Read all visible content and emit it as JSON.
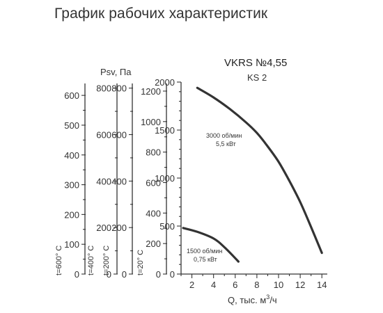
{
  "title": "График рабочих характеристик",
  "chart_data": {
    "type": "line",
    "model": "VKRS №4,55",
    "model_sub": "KS 2",
    "xlabel_main": "Q, тыс. м",
    "xlabel_exp": "3",
    "xlabel_tail": "/ч",
    "ylabel": "Psv, Па",
    "xlim": [
      1,
      14.5
    ],
    "ylim": [
      0,
      2000
    ],
    "x_ticks": [
      2,
      4,
      6,
      8,
      10,
      12,
      14
    ],
    "y_ticks": [
      0,
      500,
      1000,
      1500,
      2000
    ],
    "series": [
      {
        "name_line1": "3000 об/мин",
        "name_line2": "5,5 кВт",
        "x": [
          2.5,
          4,
          5.5,
          7,
          8,
          9,
          10,
          11,
          12,
          13,
          14
        ],
        "y": [
          1940,
          1840,
          1720,
          1580,
          1470,
          1330,
          1170,
          970,
          750,
          490,
          220
        ]
      },
      {
        "name_line1": "1500 об/мин",
        "name_line2": "0,75 кВт",
        "x": [
          1.2,
          2.5,
          4,
          5,
          6.3
        ],
        "y": [
          480,
          440,
          370,
          280,
          130
        ]
      }
    ],
    "temperature_scales": [
      {
        "label_main": "t=20",
        "label_unit": "° C",
        "ticks": [
          0,
          200,
          400,
          600,
          800,
          1000,
          1200
        ],
        "max_value": 1250
      },
      {
        "label_main": "t=200",
        "label_unit": "° C",
        "ticks": [
          0,
          200,
          400,
          600,
          800
        ],
        "max_value": 820
      },
      {
        "label_main": "t=400",
        "label_unit": "° C",
        "ticks": [
          0,
          200,
          400,
          600,
          800
        ],
        "max_value": 820
      },
      {
        "label_main": "t=600",
        "label_unit": "° C",
        "ticks": [
          0,
          100,
          200,
          300,
          400,
          500,
          600
        ],
        "max_value": 640
      }
    ]
  }
}
